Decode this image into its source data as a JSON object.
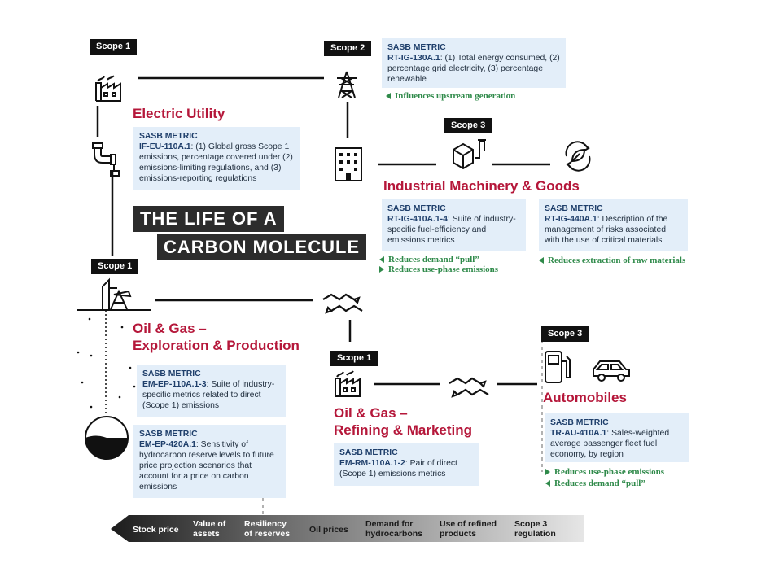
{
  "title": {
    "line1": "THE LIFE OF A",
    "line2": "CARBON MOLECULE"
  },
  "scopes": {
    "electric_utility": "Scope 1",
    "transmission": "Scope 2",
    "industrial": "Scope 3",
    "oil_gas_ep": "Scope 1",
    "oil_gas_rm": "Scope 1",
    "automobiles": "Scope 3"
  },
  "sectors": {
    "electric_utility": "Electric Utility",
    "industrial": "Industrial Machinery & Goods",
    "oil_gas_ep_1": "Oil & Gas –",
    "oil_gas_ep_2": "Exploration & Production",
    "oil_gas_rm_1": "Oil & Gas –",
    "oil_gas_rm_2": "Refining & Marketing",
    "automobiles": "Automobiles"
  },
  "metrics": {
    "heading": "SASB METRIC",
    "ig130": {
      "code": "RT-IG-130A.1",
      "text": ": (1) Total energy consumed, (2) percentage grid electricity, (3) percentage renewable"
    },
    "eu110": {
      "code": "IF-EU-110A.1",
      "text": ": (1) Global gross Scope 1 emissions, percentage covered under (2) emissions-limiting regulations, and (3) emissions-reporting regulations"
    },
    "ig410": {
      "code": "RT-IG-410A.1-4",
      "text": ": Suite of industry-specific fuel-efficiency and emissions metrics"
    },
    "ig440": {
      "code": "RT-IG-440A.1",
      "text": ": Description of the management of risks associated with the use of critical materials"
    },
    "ep110": {
      "code": "EM-EP-110A.1-3",
      "text": ": Suite of industry-specific metrics related to direct (Scope 1) emissions"
    },
    "ep420": {
      "code": "EM-EP-420A.1",
      "text": ": Sensitivity of hydrocarbon reserve levels to future price projection scenarios that account for a price on carbon emissions"
    },
    "rm110": {
      "code": "EM-RM-110A.1-2",
      "text": ": Pair of direct (Scope 1) emissions metrics"
    },
    "au410": {
      "code": "TR-AU-410A.1",
      "text": ": Sales-weighted average passenger fleet fuel economy, by region"
    }
  },
  "notes": {
    "upstream": "Influences upstream generation",
    "demand_pull_ind": "Reduces demand “pull”",
    "use_phase_ind": "Reduces use-phase emissions",
    "raw_materials": "Reduces extraction of raw materials",
    "use_phase_auto": "Reduces use-phase emissions",
    "demand_pull_auto": "Reduces demand “pull”"
  },
  "band": {
    "labels": [
      "Stock price",
      "Value of\nassets",
      "Resiliency\nof reserves",
      "Oil prices",
      "Demand for\nhydrocarbons",
      "Use of refined\nproducts",
      "Scope 3\nregulation"
    ],
    "colors": {
      "dark": "#1c1c1c",
      "light": "#e6e6e6"
    }
  },
  "colors": {
    "sector": "#b5173a",
    "note": "#2f8a4a",
    "metric_bg": "#e3eef9",
    "metric_head": "#1f3f6b"
  },
  "icons": [
    "factory-icon",
    "pylon-icon",
    "pipe-icon",
    "office-building-icon",
    "machinery-icon",
    "recycle-leaf-icon",
    "oil-pump-icon",
    "handshake-arrows-icon",
    "fuel-pump-icon",
    "car-icon",
    "reservoir-icon"
  ]
}
